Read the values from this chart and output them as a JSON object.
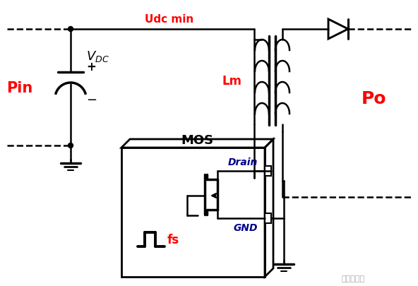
{
  "bg_color": "#ffffff",
  "line_color": "#000000",
  "red_color": "#ff0000",
  "dark_blue": "#00008B",
  "watermark": "拱振硬电子",
  "labels": {
    "udc_min": "Udc min",
    "vdc": "$V_{DC}$",
    "plus": "+",
    "minus": "-",
    "pin": "Pin",
    "lm": "Lm",
    "po": "Po",
    "mos": "MOS",
    "drain": "Drain",
    "gnd": "GND",
    "fs": "fs"
  }
}
